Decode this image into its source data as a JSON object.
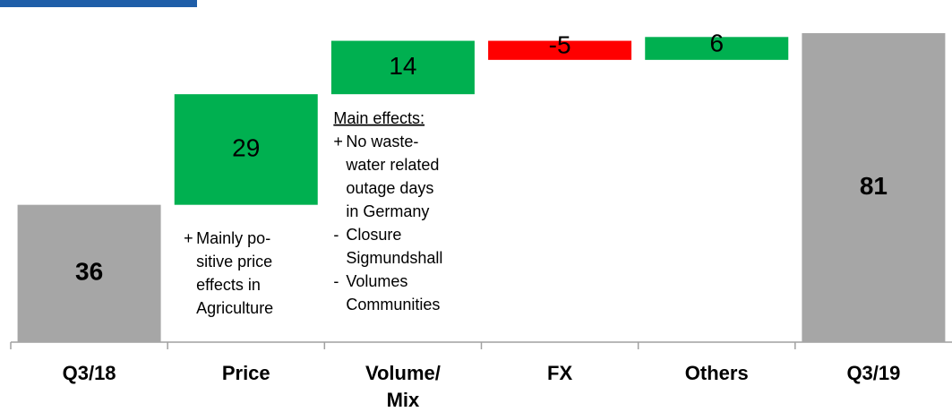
{
  "chart_data": {
    "type": "waterfall",
    "categories": [
      "Q3/18",
      "Price",
      "Volume/ Mix",
      "FX",
      "Others",
      "Q3/19"
    ],
    "values": [
      36,
      29,
      14,
      -5,
      6,
      81
    ],
    "totals": [
      true,
      false,
      false,
      false,
      false,
      true
    ],
    "total_color": "#a6a6a6",
    "positive_color": "#00b050",
    "negative_color": "#ff0000",
    "ylim": [
      0,
      85
    ],
    "annotations": [
      {
        "category": 1,
        "items": [
          {
            "sign": "+",
            "lines": [
              "Mainly po-",
              "sitive price",
              "effects in",
              "Agriculture"
            ]
          }
        ]
      },
      {
        "category": 2,
        "heading": "Main effects:",
        "items": [
          {
            "sign": "+",
            "lines": [
              "No waste-",
              "water related",
              "outage days",
              "in Germany"
            ]
          },
          {
            "sign": "-",
            "lines": [
              "Closure",
              "Sigmundshall"
            ]
          },
          {
            "sign": "-",
            "lines": [
              "Volumes",
              "Communities"
            ]
          }
        ]
      }
    ]
  }
}
